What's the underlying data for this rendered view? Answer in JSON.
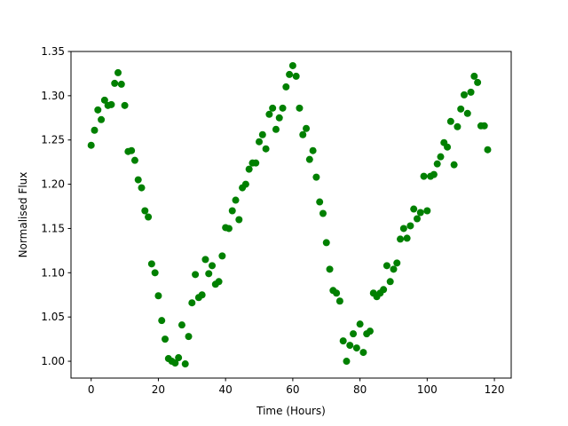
{
  "chart_data": {
    "type": "scatter",
    "x_label": "Time (Hours)",
    "y_label": "Normalised Flux",
    "color": "#008000",
    "x": [
      0,
      1,
      2,
      3,
      4,
      5,
      6,
      7,
      8,
      9,
      10,
      11,
      12,
      13,
      14,
      15,
      16,
      17,
      18,
      19,
      20,
      21,
      22,
      23,
      24,
      25,
      26,
      27,
      28,
      29,
      30,
      31,
      32,
      33,
      34,
      35,
      36,
      37,
      38,
      39,
      40,
      41,
      42,
      43,
      44,
      45,
      46,
      47,
      48,
      49,
      50,
      51,
      52,
      53,
      54,
      55,
      56,
      57,
      58,
      59,
      60,
      61,
      62,
      63,
      64,
      65,
      66,
      67,
      68,
      69,
      70,
      71,
      72,
      73,
      74,
      75,
      76,
      77,
      78,
      79,
      80,
      81,
      82,
      83,
      84,
      85,
      86,
      87,
      88,
      89,
      90,
      91,
      92,
      93,
      94,
      95,
      96,
      97,
      98,
      99,
      100,
      101,
      102,
      103,
      104,
      105,
      106,
      107,
      108,
      109,
      110,
      111,
      112,
      113,
      114,
      115,
      116,
      117,
      118
    ],
    "y": [
      1.244,
      1.261,
      1.284,
      1.273,
      1.295,
      1.289,
      1.29,
      1.314,
      1.326,
      1.313,
      1.289,
      1.237,
      1.238,
      1.227,
      1.205,
      1.196,
      1.17,
      1.163,
      1.11,
      1.1,
      1.074,
      1.046,
      1.025,
      1.003,
      1.0,
      0.998,
      1.004,
      1.041,
      0.997,
      1.028,
      1.066,
      1.098,
      1.072,
      1.075,
      1.115,
      1.099,
      1.108,
      1.087,
      1.09,
      1.119,
      1.151,
      1.15,
      1.17,
      1.182,
      1.16,
      1.196,
      1.2,
      1.217,
      1.224,
      1.224,
      1.248,
      1.256,
      1.24,
      1.279,
      1.286,
      1.262,
      1.275,
      1.286,
      1.31,
      1.324,
      1.334,
      1.322,
      1.286,
      1.256,
      1.263,
      1.228,
      1.238,
      1.208,
      1.18,
      1.167,
      1.134,
      1.104,
      1.08,
      1.077,
      1.068,
      1.023,
      1.0,
      1.018,
      1.031,
      1.015,
      1.042,
      1.01,
      1.031,
      1.034,
      1.077,
      1.073,
      1.077,
      1.081,
      1.108,
      1.09,
      1.104,
      1.111,
      1.138,
      1.15,
      1.139,
      1.153,
      1.172,
      1.161,
      1.168,
      1.209,
      1.17,
      1.209,
      1.211,
      1.223,
      1.231,
      1.247,
      1.242,
      1.271,
      1.222,
      1.265,
      1.285,
      1.301,
      1.28,
      1.304,
      1.322,
      1.315,
      1.266,
      1.266,
      1.239
    ],
    "xlim": [
      -6,
      125
    ],
    "xticks": [
      0,
      20,
      40,
      60,
      80,
      100,
      120
    ],
    "ylim": [
      0.981,
      1.35
    ],
    "yticks": [
      {
        "value": 1.0,
        "label": "1.00"
      },
      {
        "value": 1.05,
        "label": "1.05"
      },
      {
        "value": 1.1,
        "label": "1.10"
      },
      {
        "value": 1.15,
        "label": "1.15"
      },
      {
        "value": 1.2,
        "label": "1.20"
      },
      {
        "value": 1.25,
        "label": "1.25"
      },
      {
        "value": 1.3,
        "label": "1.30"
      },
      {
        "value": 1.35,
        "label": "1.35"
      }
    ]
  }
}
